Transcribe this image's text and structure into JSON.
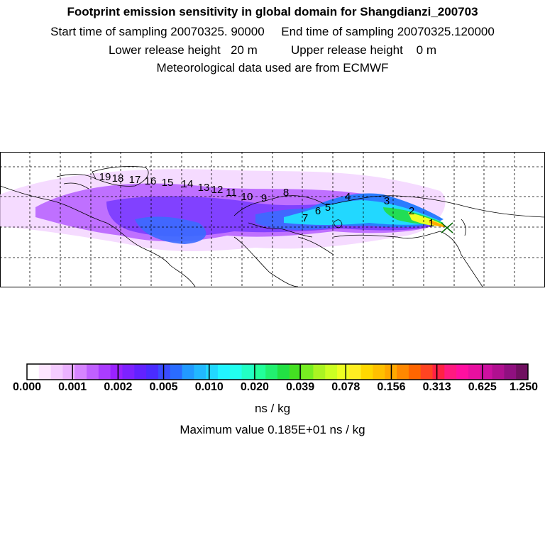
{
  "header": {
    "title": "Footprint emission sensitivity in global domain for Shangdianzi_200703",
    "sampling_line": "Start time of sampling 20070325. 90000     End time of sampling 20070325.120000",
    "release_line": "Lower release height   20 m          Upper release height    0 m",
    "met_line": "Meteorological data used are from ECMWF"
  },
  "map": {
    "receptor_marker": "x-marker",
    "trajectory_labels": [
      "1",
      "2",
      "3",
      "4",
      "5",
      "6",
      "7",
      "8",
      "9",
      "10",
      "11",
      "12",
      "13",
      "14",
      "15",
      "16",
      "17",
      "18",
      "19"
    ],
    "colors": {
      "low": "#e8b8ff",
      "purple": "#a84cff",
      "violet": "#7a3cff",
      "blue": "#3a6cff",
      "cyan": "#22d8ff",
      "green": "#22dd55",
      "yellow": "#eeff22",
      "orange": "#ffaa00"
    }
  },
  "colorbar": {
    "tick_labels": [
      "0.000",
      "0.001",
      "0.002",
      "0.005",
      "0.010",
      "0.020",
      "0.039",
      "0.078",
      "0.156",
      "0.313",
      "0.625",
      "1.250"
    ],
    "colors": [
      "#ffffff",
      "#fde6ff",
      "#f4ccff",
      "#ebb2ff",
      "#d684ff",
      "#c060ff",
      "#aa3cff",
      "#9a22ff",
      "#7d22ff",
      "#6222ff",
      "#4a2cff",
      "#3a4cff",
      "#2a6cff",
      "#229aff",
      "#22b8ff",
      "#22d8ff",
      "#22f4ff",
      "#22ffee",
      "#22ffc4",
      "#22ff9a",
      "#22f070",
      "#22e044",
      "#44e022",
      "#77ee22",
      "#aaf422",
      "#ccff22",
      "#eeff22",
      "#ffee22",
      "#ffd800",
      "#ffc000",
      "#ffa800",
      "#ff8800",
      "#ff6600",
      "#ff4422",
      "#ff2244",
      "#ff1a80",
      "#ff10a0",
      "#e810a0",
      "#cc10a0",
      "#b01090",
      "#901080",
      "#701060"
    ],
    "unit": "ns / kg",
    "max_value_text": "Maximum value  0.185E+01 ns / kg"
  }
}
